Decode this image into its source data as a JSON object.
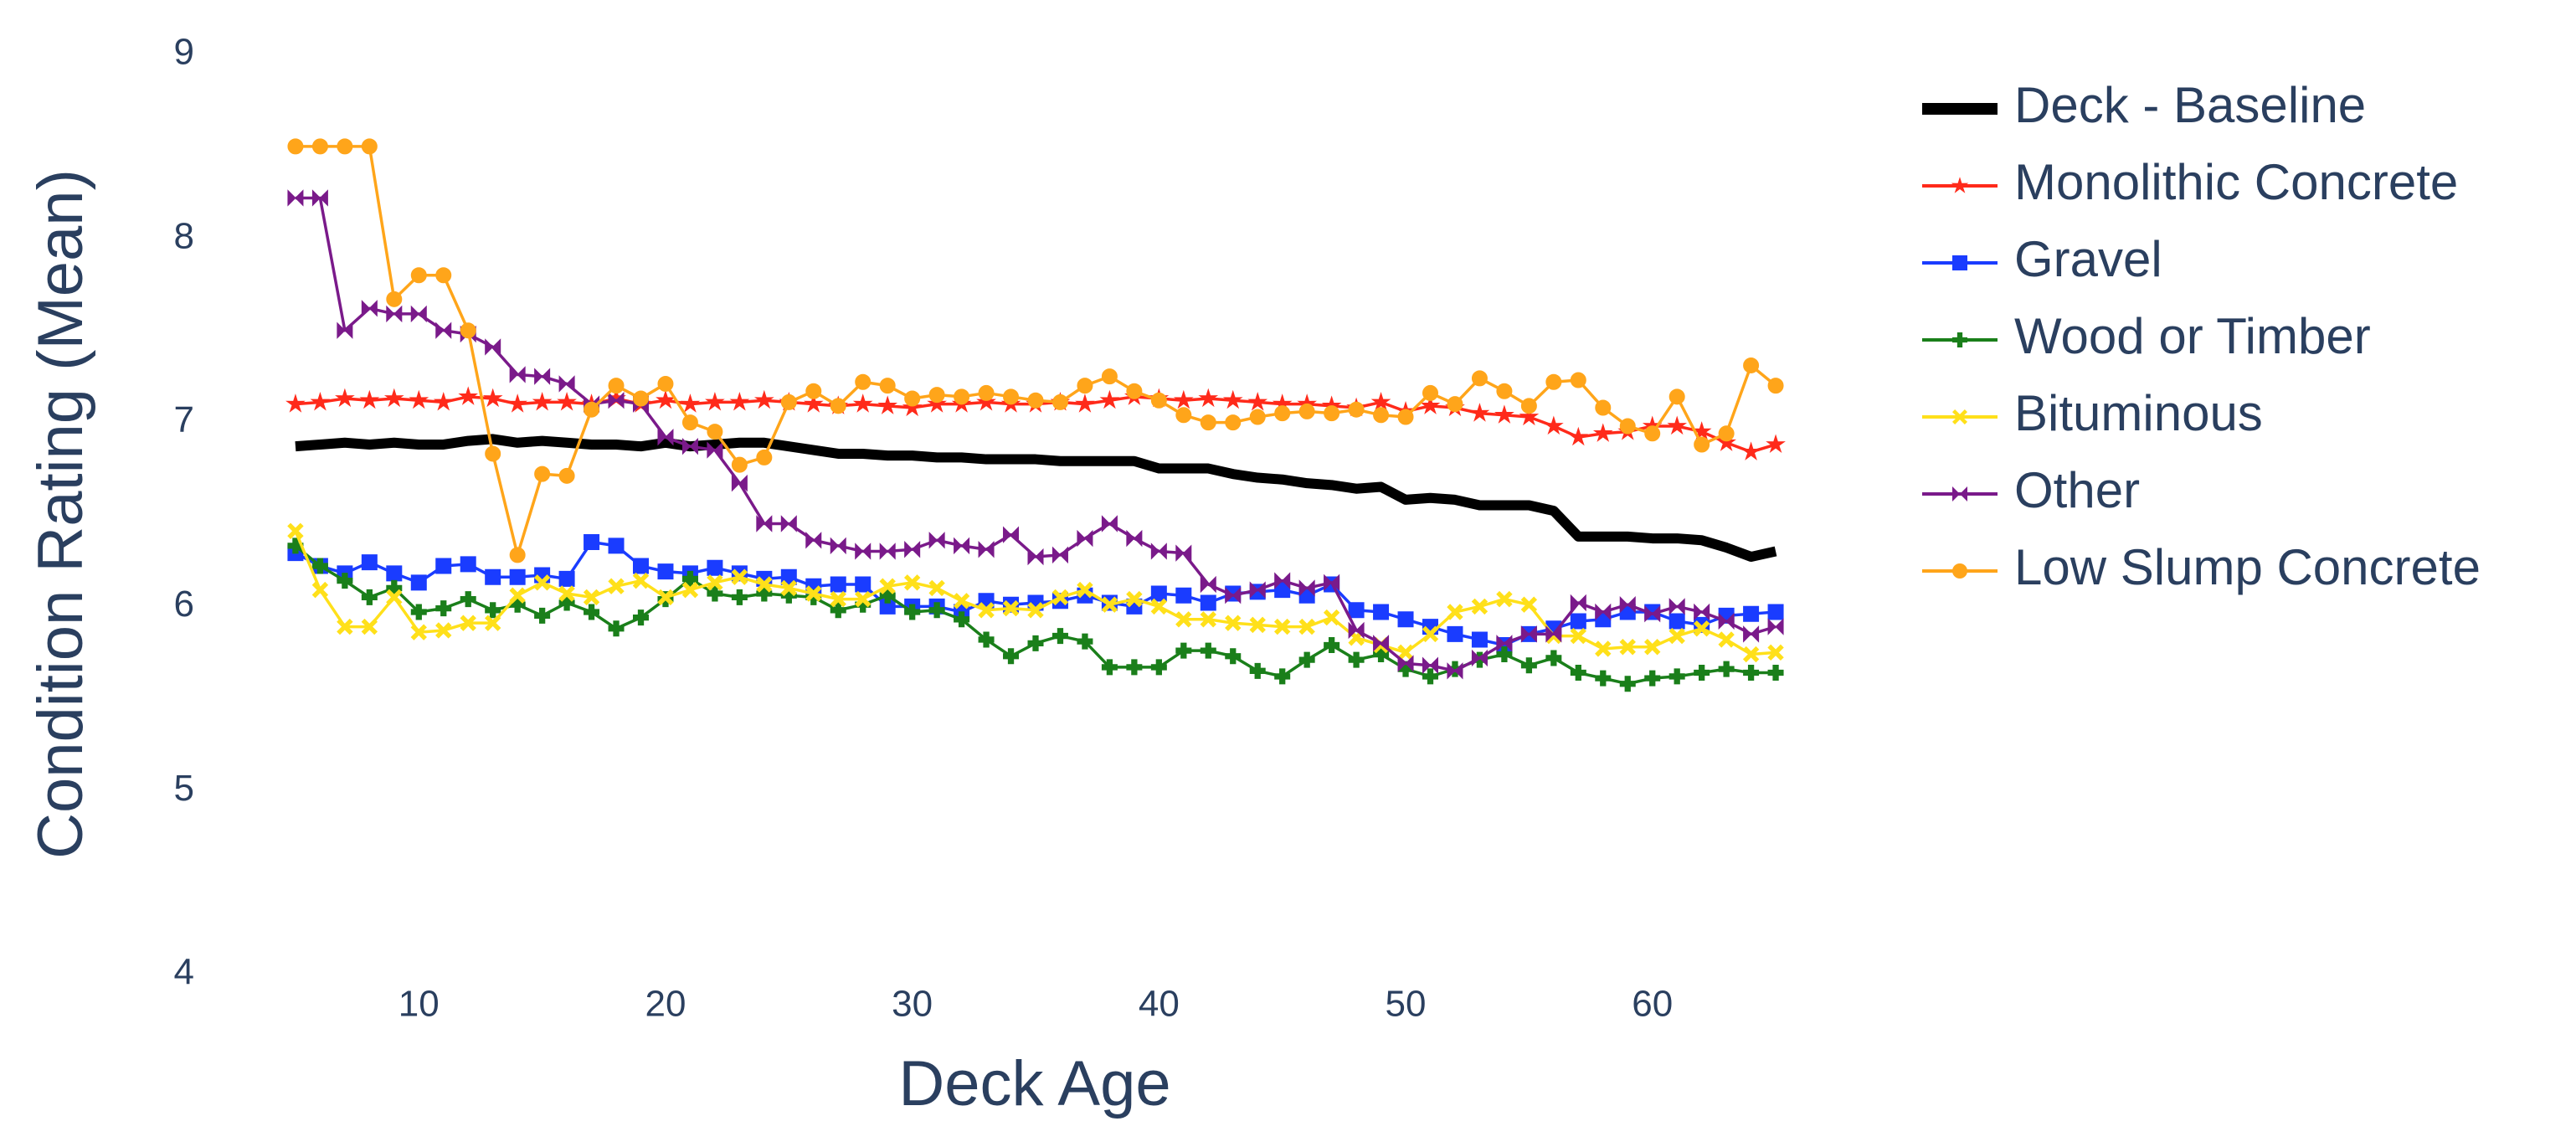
{
  "chart_data": {
    "type": "line",
    "xlabel": "Deck Age",
    "ylabel": "Condition Rating (Mean)",
    "x": [
      5,
      6,
      7,
      8,
      9,
      10,
      11,
      12,
      13,
      14,
      15,
      16,
      17,
      18,
      19,
      20,
      21,
      22,
      23,
      24,
      25,
      26,
      27,
      28,
      29,
      30,
      31,
      32,
      33,
      34,
      35,
      36,
      37,
      38,
      39,
      40,
      41,
      42,
      43,
      44,
      45,
      46,
      47,
      48,
      49,
      50,
      51,
      52,
      53,
      54,
      55,
      56,
      57,
      58,
      59,
      60,
      61,
      62,
      63,
      64,
      65
    ],
    "xlim": [
      3,
      67
    ],
    "xticks": [
      10,
      20,
      30,
      40,
      50,
      60
    ],
    "ylim": [
      4,
      9
    ],
    "yticks": [
      4,
      5,
      6,
      7,
      8,
      9
    ],
    "grid": false,
    "legend": "right",
    "series": [
      {
        "name": "Deck - Baseline",
        "color": "#000000",
        "values": [
          6.87,
          6.88,
          6.89,
          6.88,
          6.89,
          6.88,
          6.88,
          6.9,
          6.91,
          6.89,
          6.9,
          6.89,
          6.88,
          6.88,
          6.87,
          6.89,
          6.87,
          6.88,
          6.89,
          6.89,
          6.87,
          6.85,
          6.83,
          6.83,
          6.82,
          6.82,
          6.81,
          6.81,
          6.8,
          6.8,
          6.8,
          6.79,
          6.79,
          6.79,
          6.79,
          6.75,
          6.75,
          6.75,
          6.72,
          6.7,
          6.69,
          6.67,
          6.66,
          6.64,
          6.65,
          6.58,
          6.59,
          6.58,
          6.55,
          6.55,
          6.55,
          6.52,
          6.38,
          6.38,
          6.38,
          6.37,
          6.37,
          6.36,
          6.32,
          6.27,
          6.3
        ]
      },
      {
        "name": "Monolithic Concrete",
        "color": "#ff2a1a",
        "marker": "star",
        "values": [
          7.1,
          7.11,
          7.13,
          7.12,
          7.13,
          7.12,
          7.11,
          7.14,
          7.13,
          7.1,
          7.11,
          7.11,
          7.1,
          7.13,
          7.1,
          7.12,
          7.1,
          7.11,
          7.11,
          7.12,
          7.11,
          7.1,
          7.09,
          7.1,
          7.09,
          7.08,
          7.1,
          7.1,
          7.11,
          7.1,
          7.1,
          7.11,
          7.1,
          7.12,
          7.14,
          7.13,
          7.12,
          7.13,
          7.12,
          7.11,
          7.1,
          7.1,
          7.09,
          7.08,
          7.11,
          7.06,
          7.09,
          7.08,
          7.05,
          7.04,
          7.03,
          6.98,
          6.92,
          6.94,
          6.95,
          6.98,
          6.98,
          6.95,
          6.89,
          6.84,
          6.88
        ]
      },
      {
        "name": "Gravel",
        "color": "#1a3cff",
        "marker": "square",
        "values": [
          6.29,
          6.22,
          6.18,
          6.24,
          6.18,
          6.13,
          6.22,
          6.23,
          6.16,
          6.16,
          6.17,
          6.15,
          6.35,
          6.33,
          6.22,
          6.19,
          6.18,
          6.21,
          6.18,
          6.15,
          6.16,
          6.11,
          6.12,
          6.12,
          6.0,
          6.0,
          6.0,
          5.97,
          6.03,
          6.01,
          6.02,
          6.03,
          6.06,
          6.02,
          6.0,
          6.07,
          6.06,
          6.02,
          6.07,
          6.08,
          6.09,
          6.06,
          6.12,
          5.98,
          5.97,
          5.93,
          5.89,
          5.85,
          5.82,
          5.79,
          5.85,
          5.88,
          5.92,
          5.93,
          5.97,
          5.97,
          5.92,
          5.9,
          5.95,
          5.96,
          5.97
        ]
      },
      {
        "name": "Wood or Timber",
        "color": "#1a7f1a",
        "marker": "cross",
        "values": [
          6.33,
          6.22,
          6.14,
          6.05,
          6.1,
          5.97,
          5.99,
          6.04,
          5.98,
          6.01,
          5.95,
          6.02,
          5.97,
          5.88,
          5.94,
          6.04,
          6.15,
          6.07,
          6.05,
          6.07,
          6.06,
          6.05,
          5.98,
          6.01,
          6.06,
          5.97,
          5.98,
          5.93,
          5.82,
          5.73,
          5.8,
          5.84,
          5.81,
          5.67,
          5.67,
          5.67,
          5.76,
          5.76,
          5.73,
          5.65,
          5.62,
          5.71,
          5.79,
          5.71,
          5.74,
          5.66,
          5.62,
          5.66,
          5.71,
          5.74,
          5.68,
          5.72,
          5.64,
          5.61,
          5.58,
          5.61,
          5.62,
          5.64,
          5.66,
          5.64,
          5.64
        ]
      },
      {
        "name": "Bituminous",
        "color": "#ffe01a",
        "marker": "x",
        "values": [
          6.41,
          6.09,
          5.89,
          5.89,
          6.05,
          5.86,
          5.87,
          5.91,
          5.91,
          6.06,
          6.13,
          6.07,
          6.05,
          6.11,
          6.14,
          6.05,
          6.09,
          6.13,
          6.16,
          6.12,
          6.1,
          6.07,
          6.04,
          6.04,
          6.11,
          6.13,
          6.1,
          6.03,
          5.98,
          5.99,
          5.98,
          6.05,
          6.09,
          6.01,
          6.04,
          6.0,
          5.93,
          5.93,
          5.91,
          5.9,
          5.89,
          5.89,
          5.94,
          5.83,
          5.79,
          5.75,
          5.85,
          5.97,
          6.0,
          6.04,
          6.01,
          5.84,
          5.84,
          5.77,
          5.78,
          5.78,
          5.84,
          5.88,
          5.82,
          5.74,
          5.75
        ]
      },
      {
        "name": "Other",
        "color": "#7a1a8a",
        "marker": "bowtie",
        "values": [
          8.22,
          8.22,
          7.5,
          7.62,
          7.59,
          7.59,
          7.5,
          7.48,
          7.41,
          7.26,
          7.25,
          7.21,
          7.1,
          7.12,
          7.1,
          6.92,
          6.87,
          6.85,
          6.67,
          6.45,
          6.45,
          6.36,
          6.33,
          6.3,
          6.3,
          6.31,
          6.36,
          6.33,
          6.31,
          6.39,
          6.27,
          6.28,
          6.37,
          6.45,
          6.37,
          6.3,
          6.29,
          6.12,
          6.06,
          6.09,
          6.14,
          6.1,
          6.13,
          5.87,
          5.8,
          5.69,
          5.68,
          5.65,
          5.72,
          5.8,
          5.85,
          5.85,
          6.02,
          5.97,
          6.01,
          5.96,
          6.0,
          5.97,
          5.92,
          5.85,
          5.89
        ]
      },
      {
        "name": "Low Slump Concrete",
        "color": "#ffa51a",
        "marker": "circle",
        "values": [
          8.5,
          8.5,
          8.5,
          8.5,
          7.67,
          7.8,
          7.8,
          7.5,
          6.83,
          6.28,
          6.72,
          6.71,
          7.07,
          7.2,
          7.13,
          7.21,
          7.0,
          6.95,
          6.77,
          6.81,
          7.11,
          7.17,
          7.09,
          7.22,
          7.2,
          7.13,
          7.15,
          7.14,
          7.16,
          7.14,
          7.12,
          7.11,
          7.2,
          7.25,
          7.17,
          7.12,
          7.04,
          7.0,
          7.0,
          7.03,
          7.05,
          7.06,
          7.05,
          7.07,
          7.04,
          7.03,
          7.16,
          7.1,
          7.24,
          7.17,
          7.09,
          7.22,
          7.23,
          7.08,
          6.98,
          6.94,
          7.14,
          6.88,
          6.94,
          7.31,
          7.2
        ]
      }
    ]
  }
}
